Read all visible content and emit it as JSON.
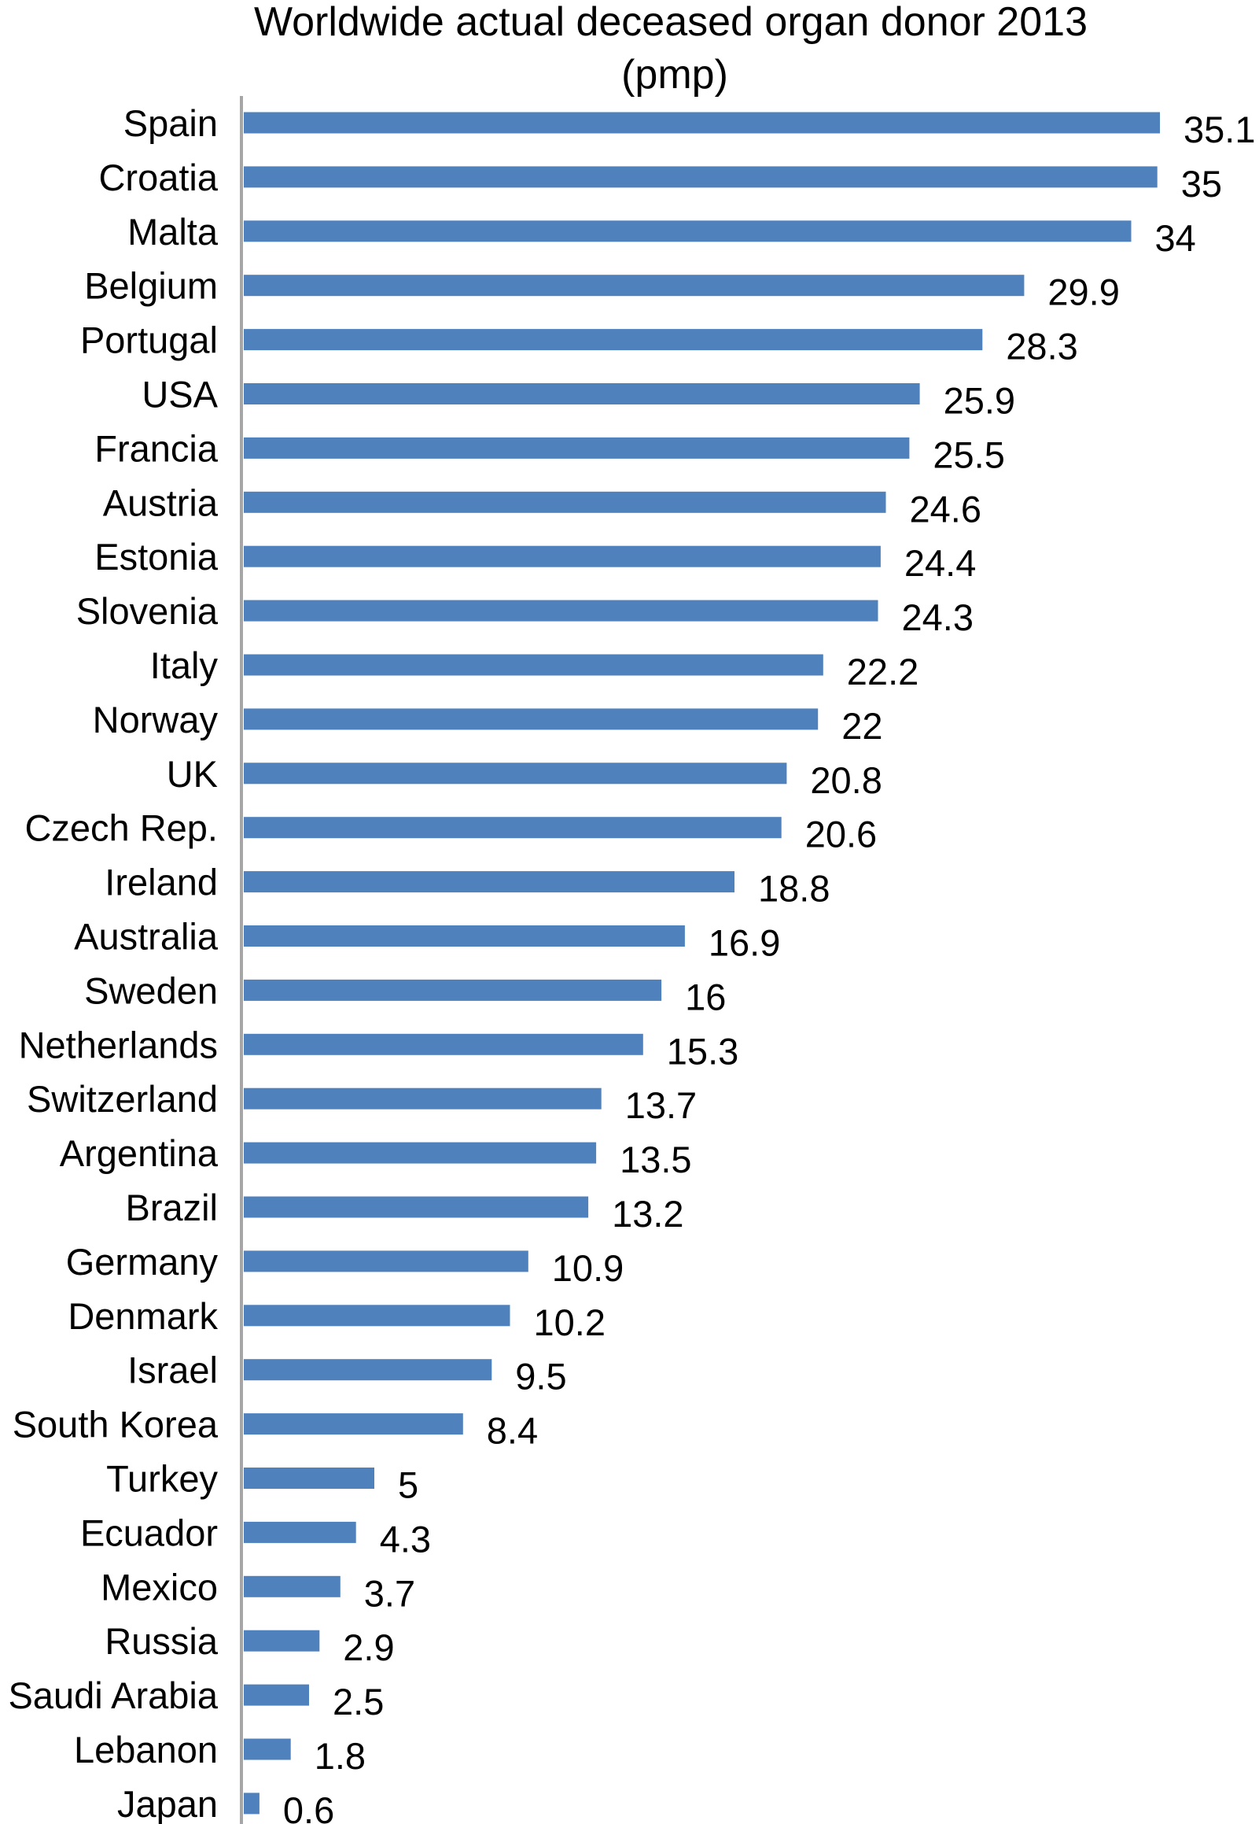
{
  "chart_data": {
    "type": "bar",
    "orientation": "horizontal",
    "title": "Worldwide actual deceased organ donor 2013 (pmp)",
    "title_lines": [
      "Worldwide actual deceased organ donor 2013",
      "(pmp)"
    ],
    "xlabel": "",
    "ylabel": "",
    "xlim": [
      0,
      35.1
    ],
    "grid": false,
    "legend": "none",
    "bar_color": "#4f81bd",
    "axis_color": "#a6a6a6",
    "categories": [
      "Spain",
      "Croatia",
      "Malta",
      "Belgium",
      "Portugal",
      "USA",
      "Francia",
      "Austria",
      "Estonia",
      "Slovenia",
      "Italy",
      "Norway",
      "UK",
      "Czech Rep.",
      "Ireland",
      "Australia",
      "Sweden",
      "Netherlands",
      "Switzerland",
      "Argentina",
      "Brazil",
      "Germany",
      "Denmark",
      "Israel",
      "South Korea",
      "Turkey",
      "Ecuador",
      "Mexico",
      "Russia",
      "Saudi Arabia",
      "Lebanon",
      "Japan"
    ],
    "values": [
      35.1,
      35,
      34,
      29.9,
      28.3,
      25.9,
      25.5,
      24.6,
      24.4,
      24.3,
      22.2,
      22,
      20.8,
      20.6,
      18.8,
      16.9,
      16,
      15.3,
      13.7,
      13.5,
      13.2,
      10.9,
      10.2,
      9.5,
      8.4,
      5,
      4.3,
      3.7,
      2.9,
      2.5,
      1.8,
      0.6
    ],
    "value_labels": [
      "35.1",
      "35",
      "34",
      "29.9",
      "28.3",
      "25.9",
      "25.5",
      "24.6",
      "24.4",
      "24.3",
      "22.2",
      "22",
      "20.8",
      "20.6",
      "18.8",
      "16.9",
      "16",
      "15.3",
      "13.7",
      "13.5",
      "13.2",
      "10.9",
      "10.2",
      "9.5",
      "8.4",
      "5",
      "4.3",
      "3.7",
      "2.9",
      "2.5",
      "1.8",
      "0.6"
    ]
  }
}
